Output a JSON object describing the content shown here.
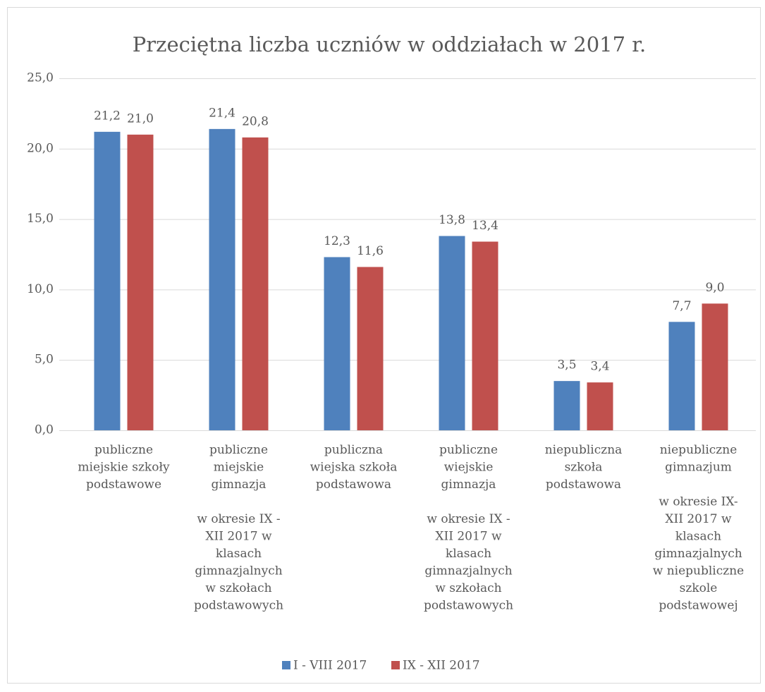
{
  "chart_data": {
    "type": "bar",
    "title": "Przeciętna liczba uczniów w oddziałach w 2017 r.",
    "categories": [
      "publiczne\nmiejskie szkoły\npodstawowe",
      "publiczne\nmiejskie\ngimnazja\n\nw okresie IX -\nXII 2017 w\nklasach\ngimnazjalnych\nw szkołach\npodstawowych",
      "publiczna\nwiejska szkoła\npodstawowa",
      "publiczne\nwiejskie\ngimnazja\n\nw okresie IX -\nXII 2017 w\nklasach\ngimnazjalnych\nw szkołach\npodstawowych",
      "niepubliczna\nszkoła\npodstawowa",
      "niepubliczne\ngimnazjum\n\nw okresie IX-\nXII 2017 w\nklasach\ngimnazjalnych\nw niepubliczne\nszkole\npodstawowej"
    ],
    "series": [
      {
        "name": "I - VIII 2017",
        "color": "#4f81bd",
        "values": [
          21.2,
          21.4,
          12.3,
          13.8,
          3.5,
          7.7
        ],
        "value_labels": [
          "21,2",
          "21,4",
          "12,3",
          "13,8",
          "3,5",
          "7,7"
        ]
      },
      {
        "name": "IX - XII 2017",
        "color": "#c0504d",
        "values": [
          21.0,
          20.8,
          11.6,
          13.4,
          3.4,
          9.0
        ],
        "value_labels": [
          "21,0",
          "20,8",
          "11,6",
          "13,4",
          "3,4",
          "9,0"
        ]
      }
    ],
    "ylim": [
      0,
      25
    ],
    "yticks": [
      {
        "value": 0,
        "label": "0,0"
      },
      {
        "value": 5,
        "label": "5,0"
      },
      {
        "value": 10,
        "label": "10,0"
      },
      {
        "value": 15,
        "label": "15,0"
      },
      {
        "value": 20,
        "label": "20,0"
      },
      {
        "value": 25,
        "label": "25,0"
      }
    ],
    "grid": true,
    "legend": "bottom"
  }
}
